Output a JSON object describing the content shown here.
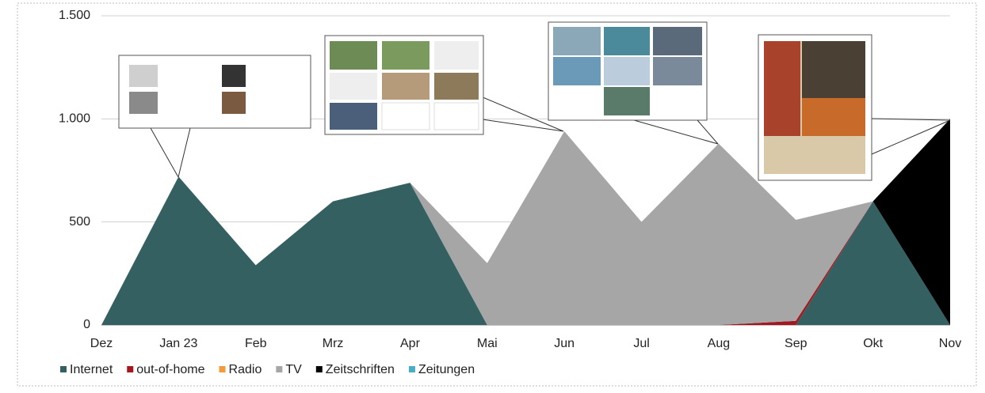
{
  "chart_data": {
    "type": "stacked-area",
    "categories": [
      "Dez",
      "Jan 23",
      "Feb",
      "Mrz",
      "Apr",
      "Mai",
      "Jun",
      "Jul",
      "Aug",
      "Sep",
      "Okt",
      "Nov"
    ],
    "series": [
      {
        "name": "Internet",
        "color": "#356062",
        "values": [
          0,
          720,
          290,
          600,
          690,
          0,
          0,
          0,
          0,
          0,
          600,
          0
        ]
      },
      {
        "name": "out-of-home",
        "color": "#a3181f",
        "values": [
          0,
          0,
          0,
          0,
          0,
          0,
          0,
          0,
          0,
          20,
          0,
          0
        ]
      },
      {
        "name": "Radio",
        "color": "#f39a3c",
        "values": [
          0,
          0,
          0,
          0,
          0,
          0,
          0,
          0,
          0,
          0,
          0,
          0
        ]
      },
      {
        "name": "TV",
        "color": "#a6a6a6",
        "values": [
          0,
          0,
          0,
          0,
          0,
          300,
          940,
          500,
          880,
          490,
          0,
          0
        ]
      },
      {
        "name": "Zeitschriften",
        "color": "#000000",
        "values": [
          0,
          0,
          0,
          0,
          0,
          0,
          0,
          0,
          0,
          0,
          0,
          1000
        ]
      },
      {
        "name": "Zeitungen",
        "color": "#4bacc6",
        "values": [
          0,
          0,
          0,
          0,
          0,
          0,
          0,
          0,
          0,
          0,
          0,
          0
        ]
      }
    ],
    "ylim": [
      0,
      1500
    ],
    "yticks": [
      0,
      500,
      {
        "value": 1000,
        "label": "1.000"
      },
      {
        "value": 1500,
        "label": "1.500"
      }
    ],
    "grid": true,
    "legend": "bottom"
  }
}
